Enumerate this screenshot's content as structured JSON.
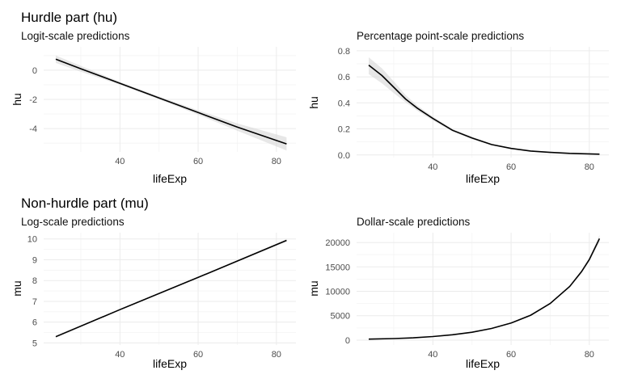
{
  "sections": {
    "hurdle_title": "Hurdle part (hu)",
    "nonhurdle_title": "Non-hurdle part (mu)"
  },
  "chart_data": [
    {
      "id": "p1",
      "type": "line",
      "subtitle": "Logit-scale predictions",
      "xlabel": "lifeExp",
      "ylabel": "hu",
      "xlim": [
        20.5,
        85
      ],
      "ylim": [
        -5.6,
        1.6
      ],
      "xticks": [
        40,
        60,
        80
      ],
      "xtick_labels": [
        "40",
        "60",
        "80"
      ],
      "yticks": [
        -4,
        -2,
        0
      ],
      "ytick_labels": [
        "-4",
        "-2",
        "0"
      ],
      "grid": true,
      "series": [
        {
          "x": [
            23.6,
            30,
            40,
            50,
            60,
            70,
            82.6
          ],
          "y": [
            0.75,
            0.1,
            -0.9,
            -1.9,
            -2.9,
            -3.9,
            -5.05
          ],
          "lower": [
            0.5,
            -0.1,
            -1.0,
            -2.0,
            -3.05,
            -4.15,
            -5.5
          ],
          "upper": [
            1.0,
            0.3,
            -0.8,
            -1.8,
            -2.75,
            -3.65,
            -4.6
          ]
        }
      ]
    },
    {
      "id": "p2",
      "type": "line",
      "subtitle": "Percentage point-scale predictions",
      "xlabel": "lifeExp",
      "ylabel": "hu",
      "xlim": [
        20.5,
        85
      ],
      "ylim": [
        -0.02,
        0.83
      ],
      "xticks": [
        40,
        60,
        80
      ],
      "xtick_labels": [
        "40",
        "60",
        "80"
      ],
      "yticks": [
        0.0,
        0.2,
        0.4,
        0.6,
        0.8
      ],
      "ytick_labels": [
        "0.0",
        "0.2",
        "0.4",
        "0.6",
        "0.8"
      ],
      "grid": true,
      "series": [
        {
          "x": [
            23.6,
            27,
            30,
            33,
            36,
            40,
            45,
            50,
            55,
            60,
            65,
            70,
            75,
            82.6
          ],
          "y": [
            0.69,
            0.61,
            0.52,
            0.43,
            0.36,
            0.28,
            0.19,
            0.13,
            0.08,
            0.05,
            0.03,
            0.02,
            0.012,
            0.006
          ],
          "lower": [
            0.62,
            0.55,
            0.475,
            0.405,
            0.34,
            0.265,
            0.18,
            0.12,
            0.075,
            0.045,
            0.026,
            0.016,
            0.009,
            0.004
          ],
          "upper": [
            0.75,
            0.665,
            0.565,
            0.46,
            0.38,
            0.295,
            0.2,
            0.14,
            0.087,
            0.056,
            0.035,
            0.025,
            0.016,
            0.01
          ]
        }
      ]
    },
    {
      "id": "p3",
      "type": "line",
      "subtitle": "Log-scale predictions",
      "xlabel": "lifeExp",
      "ylabel": "mu",
      "xlim": [
        20.5,
        85
      ],
      "ylim": [
        4.9,
        10.3
      ],
      "xticks": [
        40,
        60,
        80
      ],
      "xtick_labels": [
        "40",
        "60",
        "80"
      ],
      "yticks": [
        5,
        6,
        7,
        8,
        9,
        10
      ],
      "ytick_labels": [
        "5",
        "6",
        "7",
        "8",
        "9",
        "10"
      ],
      "grid": true,
      "series": [
        {
          "x": [
            23.6,
            40,
            60,
            82.6
          ],
          "y": [
            5.3,
            6.6,
            8.15,
            9.93
          ],
          "lower": [
            5.24,
            6.58,
            8.13,
            9.87
          ],
          "upper": [
            5.36,
            6.62,
            8.17,
            9.99
          ]
        }
      ]
    },
    {
      "id": "p4",
      "type": "line",
      "subtitle": "Dollar-scale predictions",
      "xlabel": "lifeExp",
      "ylabel": "mu",
      "xlim": [
        20.5,
        85
      ],
      "ylim": [
        -1000,
        22000
      ],
      "xticks": [
        40,
        60,
        80
      ],
      "xtick_labels": [
        "40",
        "60",
        "80"
      ],
      "yticks": [
        0,
        5000,
        10000,
        15000,
        20000
      ],
      "ytick_labels": [
        "0",
        "5000",
        "10000",
        "15000",
        "20000"
      ],
      "grid": true,
      "series": [
        {
          "x": [
            23.6,
            30,
            35,
            40,
            45,
            50,
            55,
            60,
            65,
            70,
            75,
            78,
            80,
            82.6
          ],
          "y": [
            200,
            330,
            480,
            730,
            1100,
            1620,
            2400,
            3500,
            5100,
            7500,
            11000,
            14000,
            16500,
            20800
          ],
          "lower": [
            180,
            310,
            460,
            715,
            1080,
            1600,
            2380,
            3470,
            5050,
            7400,
            10800,
            13700,
            16100,
            20100
          ],
          "upper": [
            220,
            350,
            500,
            745,
            1120,
            1640,
            2420,
            3530,
            5150,
            7600,
            11200,
            14300,
            16900,
            21500
          ]
        }
      ]
    }
  ]
}
